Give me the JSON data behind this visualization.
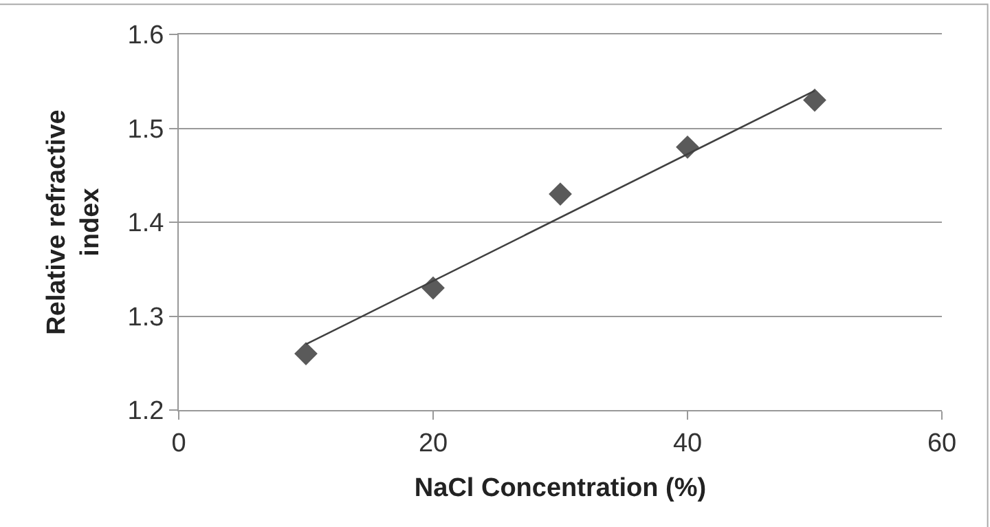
{
  "chart_data": {
    "type": "scatter",
    "xlabel": "NaCl Concentration (%)",
    "ylabel": "Relative refractive index",
    "xlim": [
      0,
      60
    ],
    "xticks": [
      0,
      20,
      40,
      60
    ],
    "ylim": [
      1.2,
      1.6
    ],
    "yticks": [
      {
        "value": 1.2,
        "label": "1.2"
      },
      {
        "value": 1.3,
        "label": "1.3"
      },
      {
        "value": 1.4,
        "label": "1.4"
      },
      {
        "value": 1.5,
        "label": "1.5"
      },
      {
        "value": 1.6,
        "label": "1.6"
      }
    ],
    "grid": "y",
    "marker": "diamond",
    "series": [
      {
        "color": "#5a5a5a",
        "x": [
          10,
          20,
          30,
          40,
          50
        ],
        "values": [
          1.26,
          1.33,
          1.43,
          1.48,
          1.53
        ]
      },
      {
        "type": "line",
        "color": "#404040",
        "marker": "none",
        "line_style": "solid",
        "x": [
          10,
          50
        ],
        "values": [
          1.27,
          1.54
        ]
      }
    ]
  }
}
